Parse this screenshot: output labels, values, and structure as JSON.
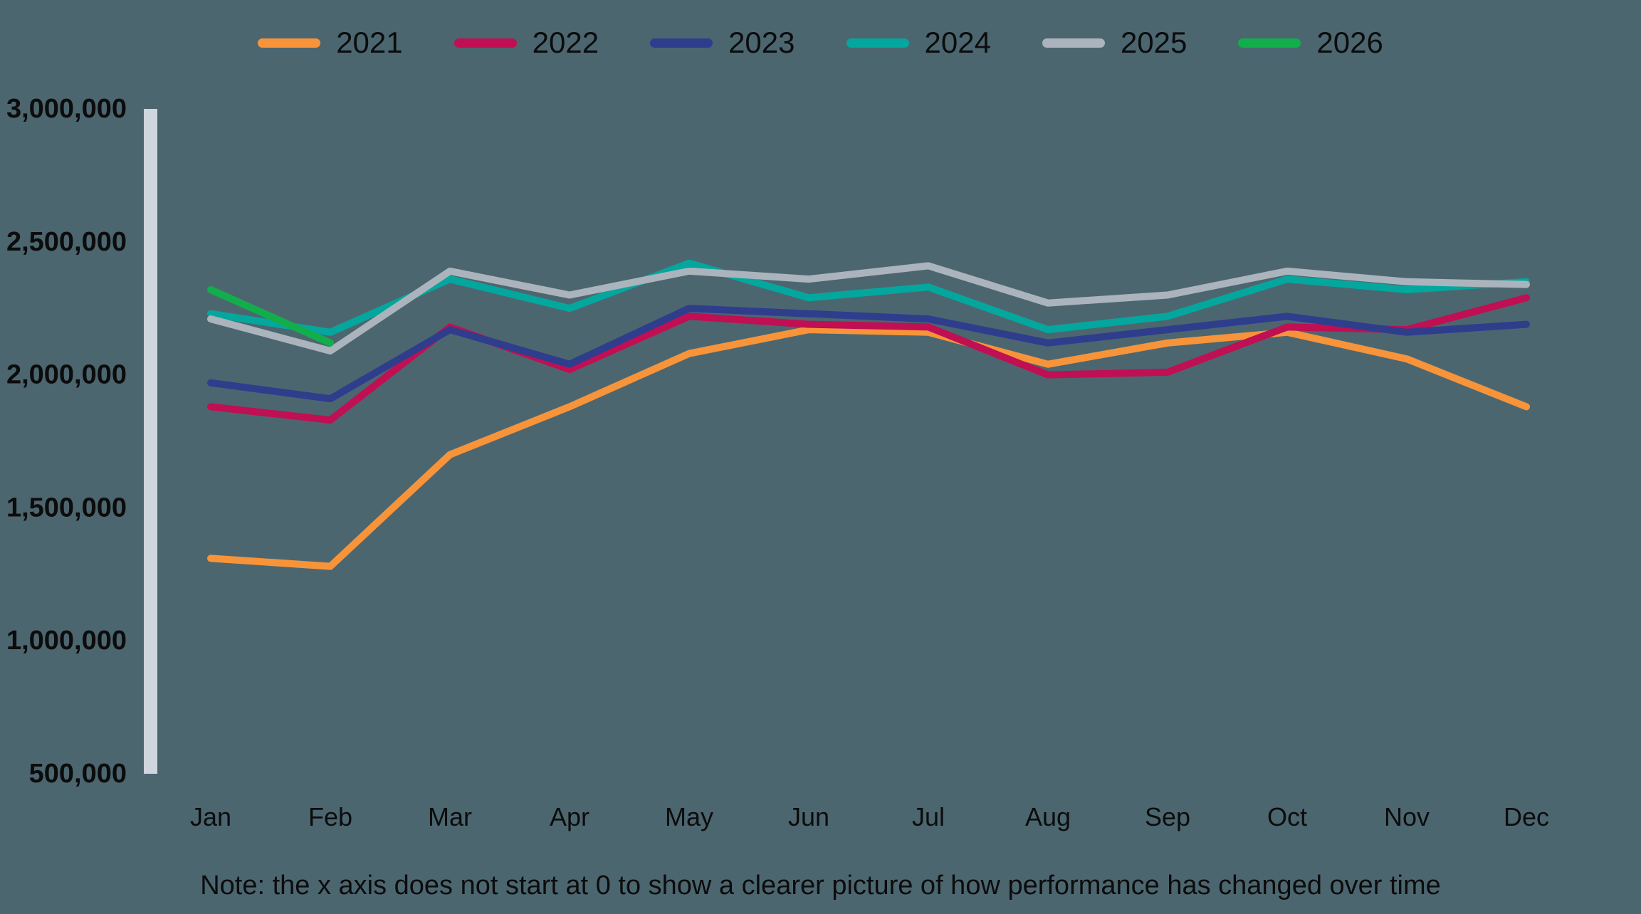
{
  "note": "Note: the x axis does not start at 0 to show a clearer picture of how performance has changed over time",
  "colors": {
    "background": "#4C6670",
    "axis_bar": "#CFD6DE",
    "text": "#0C0C0C"
  },
  "chart_data": {
    "type": "line",
    "title": "",
    "xlabel": "",
    "ylabel": "",
    "categories": [
      "Jan",
      "Feb",
      "Mar",
      "Apr",
      "May",
      "Jun",
      "Jul",
      "Aug",
      "Sep",
      "Oct",
      "Nov",
      "Dec"
    ],
    "series": [
      {
        "name": "2021",
        "color": "#F7943A",
        "values": [
          1310000,
          1280000,
          1700000,
          1880000,
          2080000,
          2170000,
          2160000,
          2040000,
          2120000,
          2160000,
          2060000,
          1880000
        ]
      },
      {
        "name": "2022",
        "color": "#C00F53",
        "values": [
          1880000,
          1830000,
          2180000,
          2020000,
          2220000,
          2190000,
          2180000,
          2000000,
          2010000,
          2180000,
          2170000,
          2290000
        ]
      },
      {
        "name": "2023",
        "color": "#2F3D8D",
        "values": [
          1970000,
          1910000,
          2170000,
          2040000,
          2250000,
          2230000,
          2210000,
          2120000,
          2170000,
          2220000,
          2160000,
          2190000
        ]
      },
      {
        "name": "2024",
        "color": "#04A79D",
        "values": [
          2230000,
          2160000,
          2360000,
          2250000,
          2420000,
          2290000,
          2330000,
          2170000,
          2220000,
          2360000,
          2320000,
          2350000
        ]
      },
      {
        "name": "2025",
        "color": "#ABB4BC",
        "values": [
          2210000,
          2090000,
          2390000,
          2300000,
          2390000,
          2360000,
          2410000,
          2270000,
          2300000,
          2390000,
          2350000,
          2340000
        ]
      },
      {
        "name": "2026",
        "color": "#12AE4B",
        "values": [
          2320000,
          2120000,
          null,
          null,
          null,
          null,
          null,
          null,
          null,
          null,
          null,
          null
        ]
      }
    ],
    "ylim": [
      500000,
      3000000
    ],
    "ytick_values": [
      3000000,
      2500000,
      2000000,
      1500000,
      1000000,
      500000
    ],
    "ytick_labels": [
      "3,000,000",
      "2,500,000",
      "2,000,000",
      "1,500,000",
      "1,000,000",
      "500,000"
    ],
    "grid": false,
    "legend_position": "top"
  }
}
